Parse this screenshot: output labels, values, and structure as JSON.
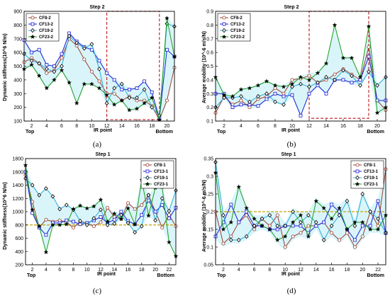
{
  "figure": {
    "panel_labels": [
      "(a)",
      "(b)",
      "(c)",
      "(d)"
    ]
  },
  "colors": {
    "CF8": "#9b3b2b",
    "CF13": "#1b1bd6",
    "CF19": "#2aa9d8",
    "CF23": "#1a9e1a",
    "band": "#b9ecf5",
    "highlight_box": "#c0272d",
    "reference_line": "#c8a200"
  },
  "chart_data": [
    {
      "id": "a",
      "type": "line",
      "title": "Step 2",
      "xlabel": "IR point",
      "ylabel": "Dynamic stiffness(10^6 N/m)",
      "xlim": [
        1,
        21
      ],
      "ylim": [
        100,
        900
      ],
      "xticks": [
        2,
        4,
        6,
        8,
        10,
        12,
        14,
        16,
        18,
        20
      ],
      "yticks": [
        100,
        200,
        300,
        400,
        500,
        600,
        700,
        800,
        900
      ],
      "end_labels": {
        "left": "Top",
        "right": "Bottom"
      },
      "legend_position": "top-left",
      "highlight": {
        "x": [
          12,
          19
        ],
        "y": [
          110,
          900
        ]
      },
      "x": [
        1,
        2,
        3,
        4,
        5,
        6,
        7,
        8,
        9,
        10,
        11,
        12,
        13,
        14,
        15,
        16,
        17,
        18,
        19,
        20,
        21
      ],
      "series": [
        {
          "name": "CF8-2",
          "marker": "circle",
          "values": [
            530,
            560,
            520,
            450,
            470,
            560,
            700,
            650,
            550,
            460,
            390,
            300,
            300,
            250,
            280,
            250,
            250,
            210,
            110,
            250,
            490
          ]
        },
        {
          "name": "CF13-2",
          "marker": "square",
          "values": [
            690,
            600,
            620,
            510,
            500,
            590,
            740,
            680,
            640,
            620,
            540,
            450,
            400,
            330,
            330,
            340,
            390,
            310,
            120,
            620,
            570
          ]
        },
        {
          "name": "CF19-2",
          "marker": "diamond",
          "values": [
            590,
            540,
            520,
            480,
            460,
            500,
            720,
            670,
            630,
            660,
            480,
            230,
            340,
            370,
            270,
            270,
            330,
            200,
            140,
            810,
            790
          ]
        },
        {
          "name": "CF23-2",
          "marker": "star",
          "values": [
            480,
            510,
            430,
            340,
            400,
            470,
            380,
            230,
            370,
            370,
            340,
            290,
            220,
            250,
            180,
            190,
            230,
            270,
            110,
            850,
            570
          ]
        }
      ],
      "band_values": {
        "upper": [
          700,
          610,
          630,
          520,
          510,
          600,
          750,
          690,
          650,
          670,
          550,
          460,
          410,
          380,
          340,
          350,
          400,
          320,
          150,
          860,
          800
        ],
        "lower": [
          470,
          500,
          420,
          330,
          390,
          460,
          370,
          220,
          360,
          360,
          330,
          220,
          210,
          240,
          170,
          180,
          220,
          190,
          105,
          240,
          480
        ]
      }
    },
    {
      "id": "b",
      "type": "line",
      "title": "Step 2",
      "xlabel": "IR point",
      "ylabel": "Average mobility (10^-6 m/s/N)",
      "xlim": [
        1,
        21
      ],
      "ylim": [
        0.1,
        0.9
      ],
      "xticks": [
        2,
        4,
        6,
        8,
        10,
        12,
        14,
        16,
        18,
        20
      ],
      "yticks": [
        0.1,
        0.2,
        0.3,
        0.4,
        0.5,
        0.6,
        0.7,
        0.8,
        0.9
      ],
      "end_labels": {
        "left": "Top",
        "right": "Bottom"
      },
      "legend_position": "top-left",
      "highlight": {
        "x": [
          12,
          19
        ],
        "y": [
          0.12,
          0.9
        ]
      },
      "x": [
        1,
        2,
        3,
        4,
        5,
        6,
        7,
        8,
        9,
        10,
        11,
        12,
        13,
        14,
        15,
        16,
        17,
        18,
        19,
        20,
        21
      ],
      "series": [
        {
          "name": "CF8-2",
          "marker": "circle",
          "values": [
            0.16,
            0.28,
            0.22,
            0.25,
            0.2,
            0.26,
            0.28,
            0.34,
            0.3,
            0.4,
            0.41,
            0.43,
            0.38,
            0.4,
            0.44,
            0.48,
            0.44,
            0.4,
            0.64,
            0.25,
            0.18
          ]
        },
        {
          "name": "CF13-2",
          "marker": "square",
          "values": [
            0.3,
            0.3,
            0.2,
            0.22,
            0.22,
            0.21,
            0.26,
            0.3,
            0.28,
            0.29,
            0.14,
            0.3,
            0.36,
            0.3,
            0.4,
            0.4,
            0.38,
            0.4,
            0.57,
            0.25,
            0.25
          ]
        },
        {
          "name": "CF19-2",
          "marker": "diamond",
          "values": [
            0.2,
            0.27,
            0.27,
            0.28,
            0.24,
            0.28,
            0.3,
            0.24,
            0.22,
            0.35,
            0.37,
            0.35,
            0.38,
            0.42,
            0.4,
            0.47,
            0.43,
            0.36,
            0.46,
            0.36,
            0.42
          ]
        },
        {
          "name": "CF23-2",
          "marker": "star",
          "values": [
            0.42,
            0.29,
            0.28,
            0.33,
            0.34,
            0.36,
            0.39,
            0.36,
            0.35,
            0.37,
            0.42,
            0.4,
            0.45,
            0.52,
            0.8,
            0.56,
            0.56,
            0.42,
            0.79,
            0.16,
            0.2
          ]
        }
      ],
      "band_values": {
        "upper": [
          0.43,
          0.31,
          0.29,
          0.34,
          0.35,
          0.37,
          0.4,
          0.37,
          0.36,
          0.41,
          0.43,
          0.45,
          0.46,
          0.53,
          0.81,
          0.57,
          0.57,
          0.43,
          0.8,
          0.37,
          0.43
        ],
        "lower": [
          0.15,
          0.26,
          0.19,
          0.21,
          0.19,
          0.2,
          0.25,
          0.23,
          0.21,
          0.28,
          0.13,
          0.29,
          0.35,
          0.29,
          0.39,
          0.39,
          0.37,
          0.35,
          0.45,
          0.15,
          0.17
        ]
      }
    },
    {
      "id": "c",
      "type": "line",
      "title": "Step 1",
      "xlabel": "IR point",
      "ylabel": "Dynamic stiffness(10^6 N/m)",
      "xlim": [
        1,
        23
      ],
      "ylim": [
        200,
        1800
      ],
      "xticks": [
        2,
        4,
        6,
        8,
        10,
        12,
        14,
        16,
        18,
        20,
        22
      ],
      "yticks": [
        200,
        400,
        600,
        800,
        1000,
        1200,
        1400,
        1600,
        1800
      ],
      "end_labels": {
        "left": "Top",
        "right": "Bottom"
      },
      "legend_position": "top-right",
      "reference_line": 800,
      "x": [
        1,
        2,
        3,
        4,
        5,
        6,
        7,
        8,
        9,
        10,
        11,
        12,
        13,
        14,
        15,
        16,
        17,
        18,
        19,
        20,
        21,
        22,
        23
      ],
      "series": [
        {
          "name": "CF8-1",
          "marker": "circle",
          "values": [
            1550,
            1150,
            760,
            880,
            850,
            870,
            840,
            760,
            850,
            830,
            780,
            840,
            1060,
            920,
            890,
            1130,
            1040,
            1100,
            1250,
            1000,
            760,
            950,
            780
          ]
        },
        {
          "name": "CF13-1",
          "marker": "square",
          "values": [
            1600,
            980,
            760,
            650,
            830,
            830,
            870,
            850,
            810,
            830,
            870,
            920,
            830,
            880,
            1000,
            860,
            810,
            950,
            1170,
            1000,
            1100,
            900,
            1060
          ]
        },
        {
          "name": "CF19-1",
          "marker": "diamond",
          "values": [
            1500,
            1400,
            1250,
            1350,
            1230,
            1040,
            1100,
            1030,
            860,
            800,
            900,
            1030,
            800,
            820,
            950,
            830,
            690,
            780,
            1250,
            870,
            1200,
            1010,
            1320
          ]
        },
        {
          "name": "CF23-1",
          "marker": "star",
          "values": [
            1700,
            1030,
            780,
            390,
            800,
            800,
            810,
            1040,
            1090,
            1050,
            1080,
            1180,
            850,
            970,
            890,
            1050,
            810,
            1480,
            940,
            1360,
            1370,
            540,
            330
          ]
        }
      ],
      "band_values": {
        "upper": [
          1710,
          1410,
          1260,
          1360,
          1240,
          1050,
          1110,
          1050,
          1100,
          1060,
          1090,
          1190,
          1070,
          980,
          1010,
          1140,
          1050,
          1490,
          1260,
          1370,
          1380,
          1020,
          1330
        ],
        "lower": [
          1490,
          970,
          750,
          380,
          790,
          790,
          800,
          750,
          800,
          790,
          770,
          830,
          790,
          810,
          880,
          820,
          680,
          770,
          930,
          860,
          750,
          530,
          320
        ]
      }
    },
    {
      "id": "d",
      "type": "line",
      "title": "Step 1",
      "xlabel": "IR point",
      "ylabel": "Average mobility (10^-6 m/s/N)",
      "xlim": [
        1,
        23
      ],
      "ylim": [
        0.05,
        0.35
      ],
      "xticks": [
        2,
        4,
        6,
        8,
        10,
        12,
        14,
        16,
        18,
        20,
        22
      ],
      "yticks": [
        0.05,
        0.1,
        0.15,
        0.2,
        0.25,
        0.3,
        0.35
      ],
      "end_labels": {
        "left": "Top",
        "right": "Bottom"
      },
      "legend_position": "top-right",
      "reference_line": 0.2,
      "x": [
        1,
        2,
        3,
        4,
        5,
        6,
        7,
        8,
        9,
        10,
        11,
        12,
        13,
        14,
        15,
        16,
        17,
        18,
        19,
        20,
        21,
        22,
        23
      ],
      "series": [
        {
          "name": "CF8-1",
          "marker": "circle",
          "values": [
            0.2,
            0.11,
            0.13,
            0.17,
            0.19,
            0.15,
            0.18,
            0.16,
            0.19,
            0.1,
            0.13,
            0.14,
            0.16,
            0.16,
            0.17,
            0.14,
            0.12,
            0.14,
            0.1,
            0.13,
            0.2,
            0.16,
            0.32
          ]
        },
        {
          "name": "CF13-1",
          "marker": "square",
          "values": [
            0.13,
            0.17,
            0.22,
            0.17,
            0.2,
            0.16,
            0.16,
            0.15,
            0.15,
            0.16,
            0.16,
            0.16,
            0.14,
            0.16,
            0.17,
            0.22,
            0.2,
            0.15,
            0.12,
            0.16,
            0.16,
            0.23,
            0.14
          ]
        },
        {
          "name": "CF19-1",
          "marker": "diamond",
          "values": [
            0.34,
            0.19,
            0.12,
            0.12,
            0.13,
            0.16,
            0.18,
            0.19,
            0.16,
            0.16,
            0.2,
            0.17,
            0.19,
            0.17,
            0.12,
            0.16,
            0.19,
            0.23,
            0.16,
            0.25,
            0.2,
            0.18,
            0.14
          ]
        },
        {
          "name": "CF23-1",
          "marker": "star",
          "values": [
            0.31,
            0.15,
            0.17,
            0.27,
            0.21,
            0.18,
            0.16,
            0.15,
            0.12,
            0.13,
            0.17,
            0.19,
            0.13,
            0.23,
            0.21,
            0.18,
            0.21,
            0.15,
            0.17,
            0.17,
            0.15,
            0.15,
            0.19
          ]
        }
      ],
      "band_values": {
        "upper": [
          0.35,
          0.2,
          0.23,
          0.28,
          0.22,
          0.19,
          0.19,
          0.2,
          0.2,
          0.17,
          0.21,
          0.2,
          0.2,
          0.24,
          0.22,
          0.23,
          0.22,
          0.24,
          0.18,
          0.26,
          0.21,
          0.24,
          0.33
        ],
        "lower": [
          0.12,
          0.1,
          0.11,
          0.11,
          0.12,
          0.14,
          0.15,
          0.14,
          0.11,
          0.09,
          0.12,
          0.13,
          0.12,
          0.15,
          0.11,
          0.13,
          0.11,
          0.13,
          0.09,
          0.12,
          0.14,
          0.14,
          0.13
        ]
      }
    }
  ]
}
